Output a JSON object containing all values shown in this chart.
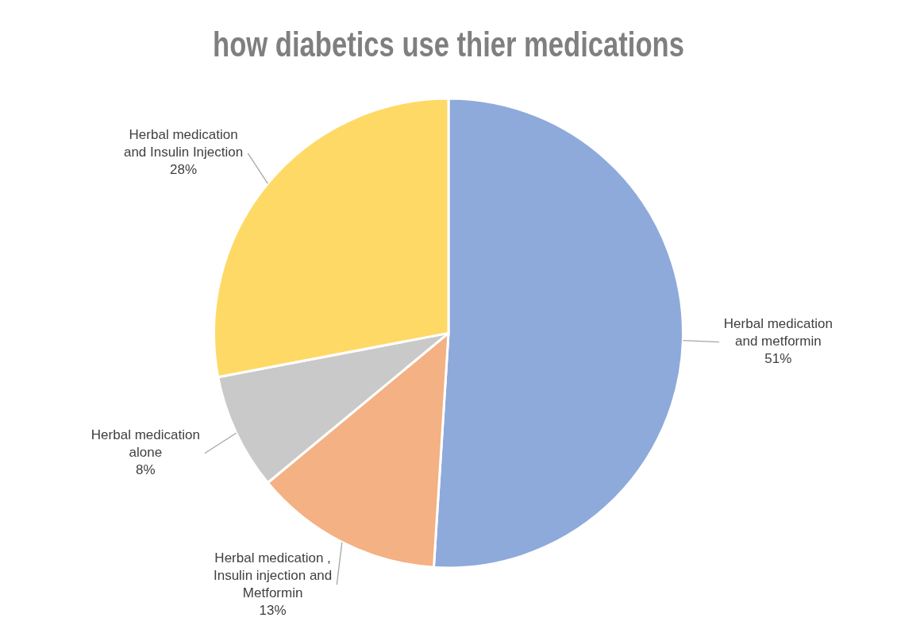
{
  "chart_data": {
    "type": "pie",
    "title": "how diabetics use thier medications",
    "categories": [
      "Herbal medication and metformin",
      "Herbal medication , Insulin injection and Metformin",
      "Herbal medication alone",
      "Herbal medication and Insulin Injection"
    ],
    "values": [
      51,
      13,
      8,
      28
    ],
    "colors": [
      "#8eaadb",
      "#f4b183",
      "#c9c9c9",
      "#ffd966"
    ],
    "value_labels": [
      "51%",
      "13%",
      "8%",
      "28%"
    ]
  }
}
